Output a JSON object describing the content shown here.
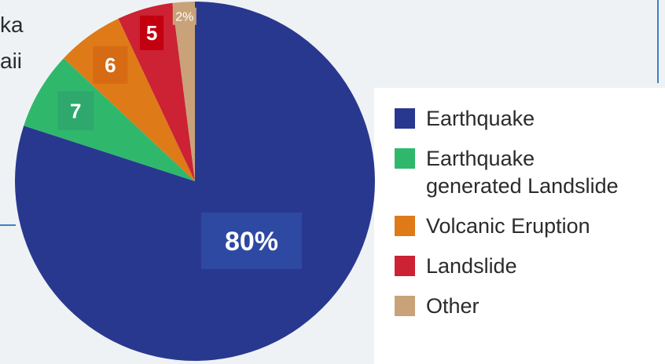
{
  "background_text": [
    "ka",
    "aii"
  ],
  "chart_data": {
    "type": "pie",
    "title": "",
    "categories": [
      "Earthquake",
      "Earthquake generated Landslide",
      "Volcanic Eruption",
      "Landslide",
      "Other"
    ],
    "values": [
      80,
      7,
      6,
      5,
      2
    ],
    "data_labels": [
      "80%",
      "7",
      "6",
      "5",
      "2%"
    ],
    "colors": [
      "#29388f",
      "#2fb86c",
      "#df7a18",
      "#cc2233",
      "#c9a27a"
    ],
    "label_box_colors": [
      "#2e49a2",
      "#2fa86e",
      "#d76b14",
      "#c3000f",
      "#c9a27a"
    ],
    "legend": {
      "position": "right",
      "entries": [
        "Earthquake",
        "Earthquake\ngenerated Landslide",
        "Volcanic Eruption",
        "Landslide",
        "Other"
      ]
    }
  }
}
